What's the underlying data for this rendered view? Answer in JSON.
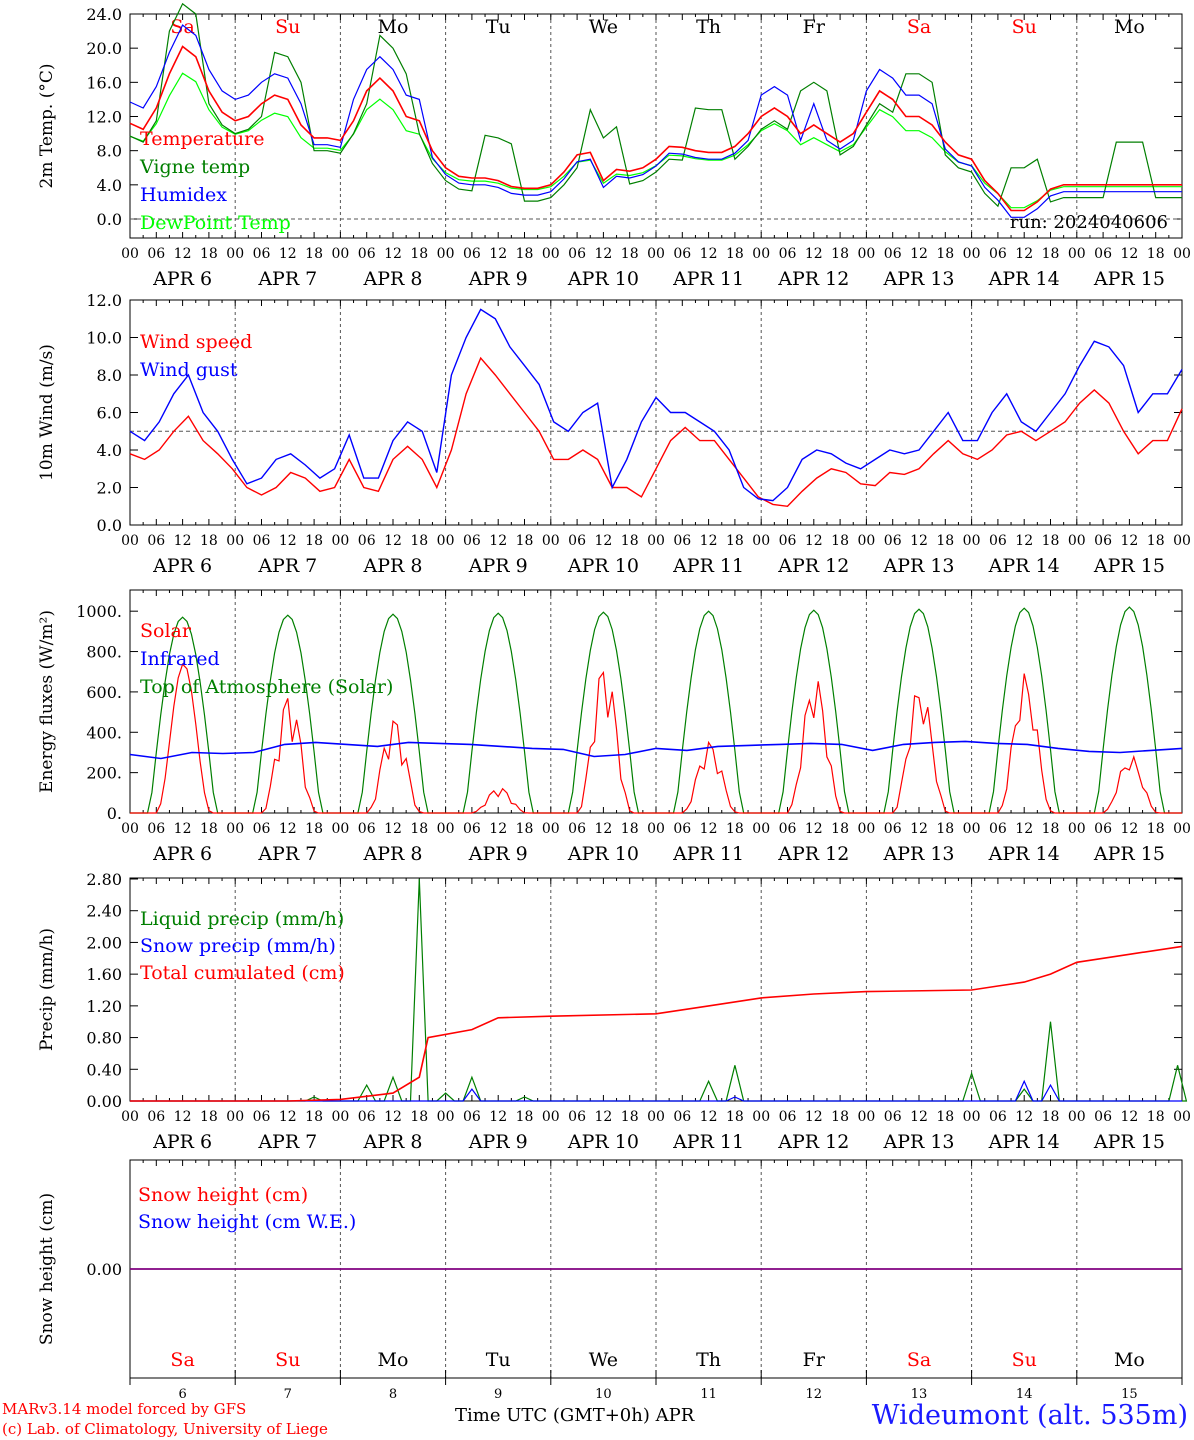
{
  "chart_data": {
    "type": "line",
    "x_unit": "hours since 2024-04-06 00 UTC",
    "days": {
      "weekday_labels": [
        "Sa",
        "Su",
        "Mo",
        "Tu",
        "We",
        "Th",
        "Fr",
        "Sa",
        "Su",
        "Mo"
      ],
      "weekend_flags": [
        true,
        true,
        false,
        false,
        false,
        false,
        false,
        true,
        true,
        false
      ],
      "date_labels": [
        "APR  6",
        "APR  7",
        "APR  8",
        "APR  9",
        "APR 10",
        "APR 11",
        "APR 12",
        "APR 13",
        "APR 14",
        "APR 15"
      ],
      "day_numbers": [
        "6",
        "7",
        "8",
        "9",
        "10",
        "11",
        "12",
        "13",
        "14",
        "15"
      ],
      "hour_labels": [
        "00",
        "06",
        "12",
        "18"
      ],
      "final_hour_label": "00"
    },
    "panels": [
      {
        "ylabel": "2m Temp. (°C)",
        "ylim": [
          0,
          24
        ],
        "ticks": [
          "0.0",
          "4.0",
          "8.0",
          "12.0",
          "16.0",
          "20.0",
          "24.0"
        ],
        "tick_values": [
          0,
          4,
          8,
          12,
          16,
          20,
          24
        ],
        "ref_line": 0,
        "annotation": "run: 2024040606",
        "series": [
          {
            "name": "Temperature",
            "color": "#ff0000",
            "x": [
              0,
              3,
              6,
              9,
              12,
              15,
              18,
              21,
              24,
              27,
              30,
              33,
              36,
              39,
              42,
              45,
              48,
              51,
              54,
              57,
              60,
              63,
              66,
              69,
              72,
              75,
              78,
              81,
              84,
              87,
              90,
              93,
              96,
              99,
              102,
              105,
              108,
              111,
              114,
              117,
              120,
              123,
              126,
              129,
              132,
              135,
              138,
              141,
              144,
              147,
              150,
              153,
              156,
              159,
              162,
              165,
              168,
              171,
              174,
              177,
              180,
              183,
              186,
              189,
              192,
              195,
              198,
              201,
              204,
              207,
              210,
              213,
              216,
              219,
              222,
              225,
              228,
              231,
              234,
              237,
              240
            ],
            "values": [
              11.2,
              10.5,
              13,
              17,
              20.2,
              19,
              15,
              12.5,
              11.5,
              12,
              13.5,
              14.5,
              14,
              11,
              9.5,
              9.5,
              9.2,
              11.5,
              15,
              16.5,
              15,
              12,
              11.5,
              8,
              6,
              5,
              4.8,
              4.8,
              4.5,
              3.8,
              3.6,
              3.6,
              4,
              5.5,
              7.5,
              7.8,
              4.5,
              5.8,
              5.6,
              6,
              7,
              8.5,
              8.4,
              8,
              7.8,
              7.8,
              8.5,
              10,
              12,
              13,
              12,
              10,
              11,
              10,
              9,
              10,
              12.5,
              15,
              14,
              12,
              12,
              11,
              9,
              7.5,
              7,
              4.5,
              3,
              1,
              1,
              2,
              3.5,
              4,
              4,
              4,
              4,
              4,
              4,
              4,
              4,
              4,
              4
            ],
            "show_to": 210
          }
        ]
      },
      {
        "ylabel": "10m Wind (m/s)",
        "ylim": [
          0,
          12
        ],
        "ticks": [
          "0.0",
          "2.0",
          "4.0",
          "6.0",
          "8.0",
          "10.0",
          "12.0"
        ],
        "tick_values": [
          0,
          2,
          4,
          6,
          8,
          10,
          12
        ],
        "ref_line": 5,
        "series": [
          {
            "name": "Wind speed",
            "color": "#ff0000",
            "values": [
              3.8,
              3.5,
              4,
              5,
              5.8,
              4.5,
              3.8,
              3,
              2,
              1.6,
              2,
              2.8,
              2.5,
              1.8,
              2,
              3.5,
              2,
              1.8,
              3.5,
              4.2,
              3.5,
              2,
              4,
              7,
              8.9,
              8,
              7,
              6,
              5,
              3.5,
              3.5,
              4,
              3.5,
              2,
              2,
              1.5,
              3,
              4.5,
              5.2,
              4.5,
              4.5,
              3.5,
              2.5,
              1.5,
              1.1,
              1,
              1.8,
              2.5,
              3,
              2.8,
              2.2,
              2.1,
              2.8,
              2.7,
              3,
              3.8,
              4.5,
              3.8,
              3.5,
              4,
              4.8,
              5,
              4.5,
              5,
              5.5,
              6.5,
              7.2,
              6.5,
              5,
              3.8,
              4.5,
              4.5,
              6.2
            ]
          },
          {
            "name": "Wind gust",
            "color": "#0000ff",
            "values": [
              5,
              4.5,
              5.5,
              7,
              8,
              6,
              5,
              3.5,
              2.2,
              2.5,
              3.5,
              3.8,
              3.2,
              2.5,
              3,
              4.8,
              2.5,
              2.5,
              4.5,
              5.5,
              5,
              2.8,
              8,
              10,
              11.5,
              11,
              9.5,
              8.5,
              7.5,
              5.5,
              5,
              6,
              6.5,
              2,
              3.5,
              5.5,
              6.8,
              6,
              6,
              5.5,
              5,
              4,
              2,
              1.4,
              1.3,
              2,
              3.5,
              4,
              3.8,
              3.3,
              3,
              3.5,
              4,
              3.8,
              4,
              5,
              6,
              4.5,
              4.5,
              6,
              7,
              5.5,
              5,
              6,
              7,
              8.5,
              9.8,
              9.5,
              8.5,
              6,
              7,
              7,
              8.3
            ]
          }
        ]
      },
      {
        "ylabel": "Energy fluxes (W/m²)",
        "ylim": [
          0,
          1100
        ],
        "ticks": [
          "0.",
          "200.",
          "400.",
          "600.",
          "800.",
          "1000."
        ],
        "tick_values": [
          0,
          200,
          400,
          600,
          800,
          1000
        ],
        "series": [
          {
            "name": "Solar",
            "color": "#ff0000",
            "peaks": [
              740,
              600,
              480,
              130,
              760,
              360,
              690,
              650,
              700,
              290
            ],
            "peak_hours": [
              11,
              12,
              13,
              13,
              12,
              13,
              12,
              12,
              12,
              13
            ]
          },
          {
            "name": "Infrared",
            "color": "#0000ff",
            "values": [
              290,
              270,
              300,
              295,
              300,
              340,
              350,
              340,
              330,
              350,
              345,
              340,
              330,
              320,
              315,
              280,
              290,
              320,
              310,
              330,
              335,
              340,
              345,
              340,
              310,
              340,
              350,
              355,
              345,
              340,
              320,
              305,
              300,
              310,
              320
            ]
          },
          {
            "name": "Top of Atmosphere (Solar)",
            "color": "#007f00",
            "peaks": [
              970,
              980,
              985,
              990,
              995,
              1000,
              1005,
              1010,
              1015,
              1020
            ]
          }
        ]
      },
      {
        "ylabel": "Precip (mm/h)",
        "ylim": [
          0,
          2.8
        ],
        "ticks": [
          "0.00",
          "0.40",
          "0.80",
          "1.20",
          "1.60",
          "2.00",
          "2.40",
          "2.80"
        ],
        "tick_values": [
          0,
          0.4,
          0.8,
          1.2,
          1.6,
          2.0,
          2.4,
          2.8
        ],
        "series": [
          {
            "name": "Liquid precip (mm/h)",
            "color": "#007f00",
            "spikes": [
              [
                42,
                0.05
              ],
              [
                54,
                0.2
              ],
              [
                60,
                0.3
              ],
              [
                66,
                2.8
              ],
              [
                72,
                0.1
              ],
              [
                78,
                0.3
              ],
              [
                90,
                0.05
              ],
              [
                132,
                0.25
              ],
              [
                138,
                0.45
              ],
              [
                192,
                0.35
              ],
              [
                204,
                0.15
              ],
              [
                210,
                1.0
              ],
              [
                239,
                0.45
              ]
            ]
          },
          {
            "name": "Snow precip (mm/h)",
            "color": "#0000ff",
            "spikes": [
              [
                78,
                0.15
              ],
              [
                138,
                0.05
              ],
              [
                204,
                0.25
              ],
              [
                210,
                0.2
              ]
            ]
          },
          {
            "name": "Total cumulated (cm)",
            "color": "#ff0000",
            "x": [
              0,
              36,
              48,
              60,
              66,
              68,
              78,
              84,
              96,
              120,
              132,
              144,
              156,
              168,
              192,
              198,
              204,
              210,
              216,
              228,
              240
            ],
            "values": [
              0,
              0,
              0.02,
              0.1,
              0.3,
              0.8,
              0.9,
              1.05,
              1.07,
              1.1,
              1.2,
              1.3,
              1.35,
              1.38,
              1.4,
              1.45,
              1.5,
              1.6,
              1.75,
              1.85,
              1.95
            ]
          }
        ]
      },
      {
        "ylabel": "Snow height (cm)",
        "ylim": [
          -1,
          1
        ],
        "ticks": [
          "0.00"
        ],
        "tick_values": [
          0
        ],
        "series": [
          {
            "name": "Snow height (cm)",
            "color": "#ff0000",
            "values": [
              0
            ]
          },
          {
            "name": "Snow height (cm W.E.)",
            "color": "#0000ff",
            "values": [
              0
            ]
          }
        ]
      }
    ],
    "legend_panel1": [
      {
        "name": "Temperature",
        "color": "#ff0000"
      },
      {
        "name": "Vigne temp",
        "color": "#007f00"
      },
      {
        "name": "Humidex",
        "color": "#0000ff"
      },
      {
        "name": "DewPoint Temp",
        "color": "#00ff00"
      }
    ],
    "xlabel": "Time UTC (GMT+0h) APR"
  },
  "footer": {
    "model": "MARv3.14 model forced by GFS",
    "copyright": "(c) Lab. of Climatology, University of Liege",
    "axis_title": "Time UTC (GMT+0h) APR",
    "station": "Wideumont (alt. 535m)"
  },
  "colors": {
    "red": "#ff0000",
    "green": "#007f00",
    "blue": "#0000ff",
    "lightgreen": "#00ff00",
    "station_blue": "#1a1aff"
  }
}
